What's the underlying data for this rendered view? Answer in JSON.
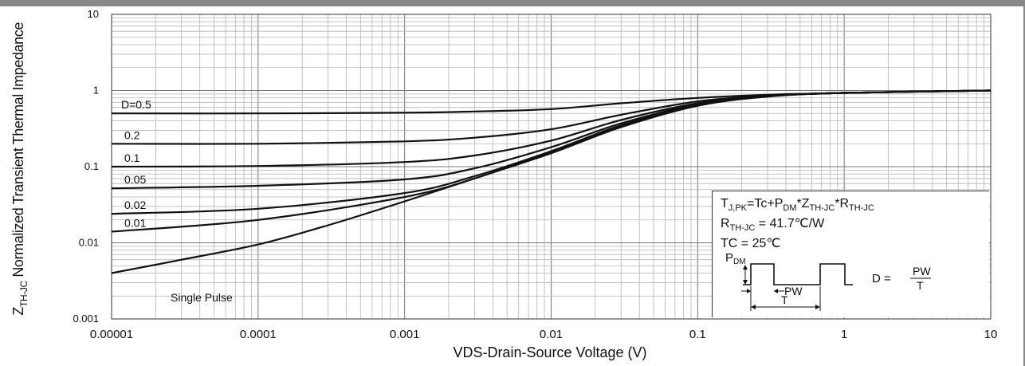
{
  "chart_data": {
    "type": "line",
    "xlabel": "VDS-Drain-Source Voltage (V)",
    "ylabel": {
      "main": "Z",
      "sub": "TH-JC",
      "rest": " Normalized Transient Thermal Impedance"
    },
    "xscale": "log",
    "yscale": "log",
    "xlim": [
      1e-05,
      10
    ],
    "ylim": [
      0.001,
      10
    ],
    "x_ticks": [
      "0.00001",
      "0.0001",
      "0.001",
      "0.01",
      "0.1",
      "1",
      "10"
    ],
    "y_ticks": [
      "10",
      "1",
      "0.1",
      "0.01",
      "0.001"
    ],
    "grid": "on",
    "series": [
      {
        "name": "D=0.5",
        "x": [
          1e-05,
          0.0001,
          0.001,
          0.003,
          0.01,
          0.03,
          0.1,
          0.3,
          1,
          10
        ],
        "y": [
          0.5,
          0.5,
          0.51,
          0.53,
          0.57,
          0.68,
          0.8,
          0.88,
          0.93,
          1.0
        ]
      },
      {
        "name": "0.2",
        "x": [
          1e-05,
          0.0001,
          0.001,
          0.003,
          0.01,
          0.03,
          0.1,
          0.3,
          1,
          10
        ],
        "y": [
          0.2,
          0.2,
          0.215,
          0.24,
          0.31,
          0.48,
          0.72,
          0.86,
          0.93,
          1.0
        ]
      },
      {
        "name": "0.1",
        "x": [
          1e-05,
          0.0001,
          0.001,
          0.003,
          0.01,
          0.03,
          0.1,
          0.3,
          1,
          10
        ],
        "y": [
          0.1,
          0.102,
          0.115,
          0.14,
          0.22,
          0.41,
          0.68,
          0.85,
          0.93,
          1.0
        ]
      },
      {
        "name": "0.05",
        "x": [
          1e-05,
          0.0001,
          0.001,
          0.003,
          0.01,
          0.03,
          0.1,
          0.3,
          1,
          10
        ],
        "y": [
          0.052,
          0.056,
          0.068,
          0.095,
          0.18,
          0.37,
          0.66,
          0.84,
          0.93,
          1.0
        ]
      },
      {
        "name": "0.02",
        "x": [
          1e-05,
          0.0001,
          0.001,
          0.003,
          0.01,
          0.03,
          0.1,
          0.3,
          1,
          10
        ],
        "y": [
          0.024,
          0.028,
          0.045,
          0.075,
          0.16,
          0.35,
          0.65,
          0.84,
          0.93,
          1.0
        ]
      },
      {
        "name": "0.01",
        "x": [
          1e-05,
          0.0001,
          0.001,
          0.003,
          0.01,
          0.03,
          0.1,
          0.3,
          1,
          10
        ],
        "y": [
          0.014,
          0.02,
          0.04,
          0.07,
          0.155,
          0.34,
          0.64,
          0.84,
          0.93,
          1.0
        ]
      },
      {
        "name": "Single Pulse",
        "x": [
          1e-05,
          3e-05,
          0.0001,
          0.0003,
          0.001,
          0.003,
          0.01,
          0.03,
          0.1,
          0.3,
          1,
          10
        ],
        "y": [
          0.004,
          0.006,
          0.0095,
          0.017,
          0.035,
          0.07,
          0.15,
          0.33,
          0.63,
          0.83,
          0.93,
          1.0
        ]
      }
    ],
    "curve_labels": [
      "D=0.5",
      "0.2",
      "0.1",
      "0.05",
      "0.02",
      "0.01"
    ],
    "annotation": "Single Pulse"
  },
  "legend": {
    "line1": {
      "t": "T",
      "t_sub": "J,PK",
      "a": "=Tc+P",
      "a_sub": "DM",
      "b": "*Z",
      "b_sub": "TH-JC",
      "c": "*R",
      "c_sub": "TH-JC"
    },
    "line2": {
      "r": "R",
      "r_sub": "TH-JC",
      "val": " = 41.7℃/W"
    },
    "line3": "TC = 25℃",
    "pulse": {
      "p": "P",
      "p_sub": "DM",
      "pw": "PW",
      "t": "T",
      "d_eq": "D = ",
      "frac_num": "PW",
      "frac_den": "T"
    }
  }
}
